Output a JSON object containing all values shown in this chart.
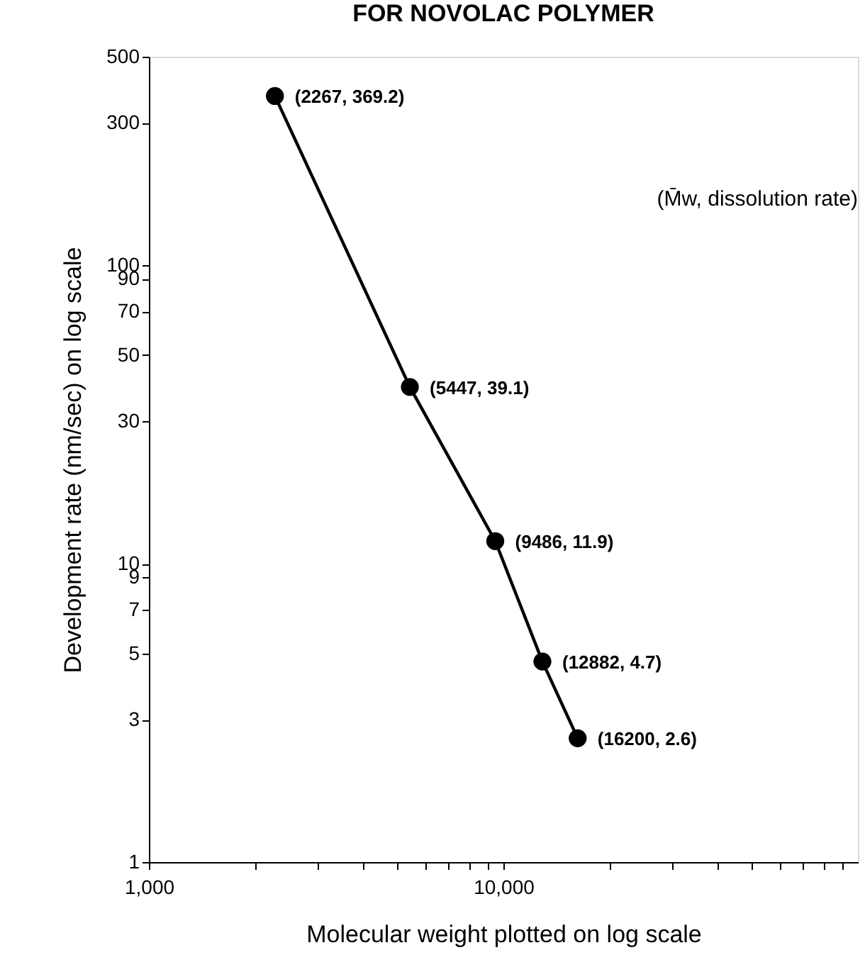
{
  "chart_data": {
    "type": "line",
    "title": "FOR NOVOLAC POLYMER",
    "xlabel": "Molecular weight plotted on log scale",
    "ylabel": "Development rate (nm/sec) on log scale",
    "x": [
      2267,
      5447,
      9486,
      12882,
      16200
    ],
    "series": [
      {
        "color": "#000000",
        "values": [
          369.2,
          39.1,
          11.9,
          4.7,
          2.6
        ]
      }
    ],
    "log": "xy",
    "marker": "circle",
    "line_style": "solid",
    "grid": false,
    "xlim": [
      1000,
      100000
    ],
    "xticks": [
      {
        "value": 1000,
        "label": "1,000"
      },
      {
        "value": 2000,
        "label": null
      },
      {
        "value": 3000,
        "label": null
      },
      {
        "value": 4000,
        "label": null
      },
      {
        "value": 5000,
        "label": null
      },
      {
        "value": 6000,
        "label": null
      },
      {
        "value": 7000,
        "label": null
      },
      {
        "value": 8000,
        "label": null
      },
      {
        "value": 9000,
        "label": null
      },
      {
        "value": 10000,
        "label": "10,000"
      },
      {
        "value": 20000,
        "label": null
      },
      {
        "value": 30000,
        "label": null
      },
      {
        "value": 40000,
        "label": null
      },
      {
        "value": 50000,
        "label": null
      },
      {
        "value": 60000,
        "label": null
      },
      {
        "value": 70000,
        "label": null
      },
      {
        "value": 80000,
        "label": null
      },
      {
        "value": 90000,
        "label": null
      }
    ],
    "ylim": [
      1,
      500
    ],
    "yticks": [
      1,
      3,
      5,
      7,
      9,
      10,
      30,
      50,
      70,
      90,
      100,
      300,
      500
    ],
    "annotations": [
      {
        "text": "(2267, 369.2)",
        "x": 2267,
        "y": 369.2
      },
      {
        "text": "(5447, 39.1)",
        "x": 5447,
        "y": 39.1
      },
      {
        "text": "(9486, 11.9)",
        "x": 9486,
        "y": 11.9
      },
      {
        "text": "(12882, 4.7)",
        "x": 12882,
        "y": 4.7
      },
      {
        "text": "(16200, 2.6)",
        "x": 16200,
        "y": 2.6
      },
      "(M̄w, dissolution rate)"
    ]
  }
}
